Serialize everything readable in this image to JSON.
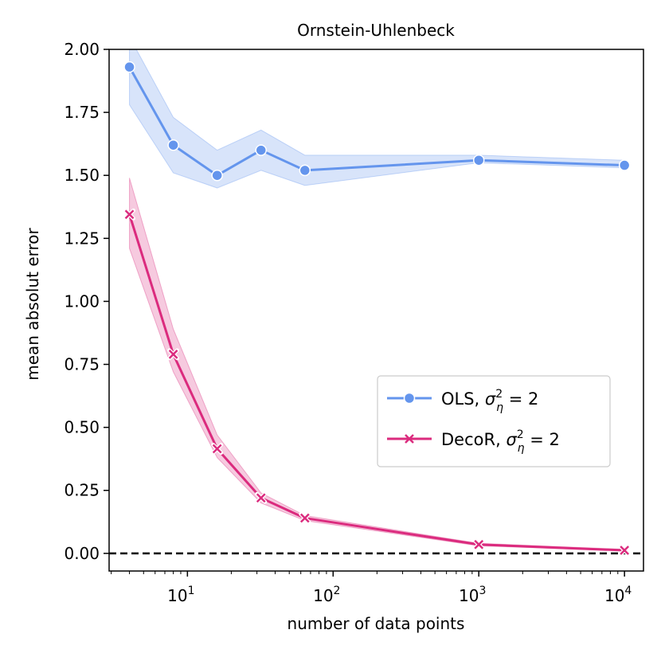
{
  "chart_data": {
    "type": "line",
    "title": "Ornstein-Uhlenbeck",
    "xlabel": "number of data points",
    "ylabel": "mean absolut error",
    "xscale": "log",
    "xlim": [
      2.9,
      13500
    ],
    "ylim": [
      -0.07,
      2.0
    ],
    "yticks": [
      "0.00",
      "0.25",
      "0.50",
      "0.75",
      "1.00",
      "1.25",
      "1.50",
      "1.75",
      "2.00"
    ],
    "xticks": [
      {
        "base": "10",
        "exp": "1",
        "value": 10
      },
      {
        "base": "10",
        "exp": "2",
        "value": 100
      },
      {
        "base": "10",
        "exp": "3",
        "value": 1000
      },
      {
        "base": "10",
        "exp": "4",
        "value": 10000
      }
    ],
    "reference_line": {
      "y": 0,
      "style": "dashed",
      "color": "#000000"
    },
    "legend": {
      "placement": "center-right"
    },
    "x": [
      4,
      8,
      16,
      32,
      64,
      1000,
      10000
    ],
    "series": [
      {
        "name": "OLS",
        "label_suffix": "σ²_η = 2",
        "legend_label": {
          "prefix": "OLS, ",
          "sym": "σ",
          "sup": "2",
          "sub": "η",
          "suffix": " = 2"
        },
        "color": "#6495ED",
        "marker": "circle",
        "values": [
          1.93,
          1.62,
          1.5,
          1.6,
          1.52,
          1.56,
          1.54
        ],
        "ci_lower": [
          1.78,
          1.51,
          1.45,
          1.52,
          1.46,
          1.55,
          1.53
        ],
        "ci_upper": [
          2.05,
          1.73,
          1.6,
          1.68,
          1.58,
          1.58,
          1.56
        ]
      },
      {
        "name": "DecoR",
        "label_suffix": "σ²_η = 2",
        "legend_label": {
          "prefix": "DecoR, ",
          "sym": "σ",
          "sup": "2",
          "sub": "η",
          "suffix": " = 2"
        },
        "color": "#DB2B7E",
        "marker": "x",
        "values": [
          1.345,
          0.79,
          0.415,
          0.22,
          0.14,
          0.035,
          0.012
        ],
        "ci_lower": [
          1.21,
          0.72,
          0.38,
          0.2,
          0.13,
          0.03,
          0.01
        ],
        "ci_upper": [
          1.49,
          0.89,
          0.47,
          0.24,
          0.15,
          0.04,
          0.016
        ]
      }
    ]
  }
}
